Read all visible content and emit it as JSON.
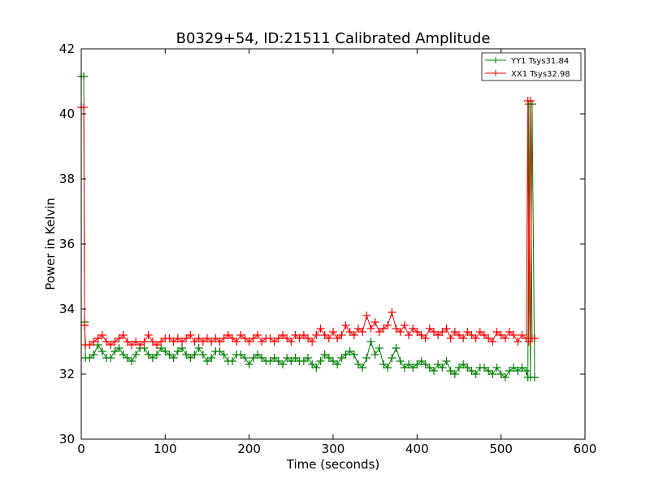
{
  "chart_data": {
    "type": "line",
    "title": "B0329+54, ID:21511 Calibrated Amplitude",
    "xlabel": "Time (seconds)",
    "ylabel": "Power in Kelvin",
    "xlim": [
      0,
      600
    ],
    "ylim": [
      30,
      42
    ],
    "xticks": [
      "0",
      "100",
      "200",
      "300",
      "400",
      "500",
      "600"
    ],
    "yticks": [
      "30",
      "32",
      "34",
      "36",
      "38",
      "40",
      "42"
    ],
    "grid": false,
    "legend_position": "top-right",
    "marker": "+",
    "series": [
      {
        "name": "YY1 Tsys31.84",
        "color": "#008000",
        "x": [
          0,
          3,
          4,
          5,
          10,
          15,
          20,
          25,
          30,
          35,
          40,
          45,
          50,
          55,
          60,
          65,
          70,
          75,
          80,
          85,
          90,
          95,
          100,
          105,
          110,
          115,
          120,
          125,
          130,
          135,
          140,
          145,
          150,
          155,
          160,
          165,
          170,
          175,
          180,
          185,
          190,
          195,
          200,
          205,
          210,
          215,
          220,
          225,
          230,
          235,
          240,
          245,
          250,
          255,
          260,
          265,
          270,
          275,
          280,
          285,
          290,
          295,
          300,
          305,
          310,
          315,
          320,
          325,
          330,
          335,
          340,
          345,
          350,
          355,
          360,
          365,
          370,
          375,
          380,
          385,
          390,
          395,
          400,
          405,
          410,
          415,
          420,
          425,
          430,
          435,
          440,
          445,
          450,
          455,
          460,
          465,
          470,
          475,
          480,
          485,
          490,
          495,
          500,
          505,
          510,
          515,
          520,
          525,
          530,
          532,
          533,
          535,
          537,
          540
        ],
        "y": [
          41.15,
          41.15,
          33.6,
          32.5,
          32.5,
          32.6,
          32.9,
          32.7,
          32.5,
          32.5,
          32.7,
          32.8,
          32.6,
          32.5,
          32.4,
          32.6,
          32.8,
          32.8,
          32.6,
          32.5,
          32.6,
          32.8,
          32.7,
          32.6,
          32.5,
          32.7,
          32.8,
          32.6,
          32.5,
          32.6,
          32.8,
          32.6,
          32.4,
          32.5,
          32.7,
          32.7,
          32.6,
          32.4,
          32.4,
          32.6,
          32.6,
          32.5,
          32.3,
          32.5,
          32.6,
          32.5,
          32.4,
          32.4,
          32.5,
          32.4,
          32.3,
          32.5,
          32.4,
          32.5,
          32.4,
          32.4,
          32.5,
          32.3,
          32.2,
          32.4,
          32.6,
          32.5,
          32.4,
          32.3,
          32.5,
          32.6,
          32.7,
          32.6,
          32.3,
          32.2,
          32.5,
          33.0,
          32.6,
          32.8,
          32.3,
          32.2,
          32.5,
          32.8,
          32.4,
          32.2,
          32.3,
          32.2,
          32.3,
          32.4,
          32.3,
          32.2,
          32.1,
          32.3,
          32.2,
          32.4,
          32.1,
          32.0,
          32.2,
          32.3,
          32.2,
          32.1,
          32.0,
          32.2,
          32.2,
          32.1,
          32.0,
          32.2,
          32.0,
          31.9,
          32.1,
          32.2,
          32.1,
          32.2,
          32.1,
          31.9,
          40.3,
          31.9,
          40.3,
          31.9
        ]
      },
      {
        "name": "XX1 Tsys32.98",
        "color": "#ff0000",
        "x": [
          0,
          3,
          4,
          5,
          10,
          15,
          20,
          25,
          30,
          35,
          40,
          45,
          50,
          55,
          60,
          65,
          70,
          75,
          80,
          85,
          90,
          95,
          100,
          105,
          110,
          115,
          120,
          125,
          130,
          135,
          140,
          145,
          150,
          155,
          160,
          165,
          170,
          175,
          180,
          185,
          190,
          195,
          200,
          205,
          210,
          215,
          220,
          225,
          230,
          235,
          240,
          245,
          250,
          255,
          260,
          265,
          270,
          275,
          280,
          285,
          290,
          295,
          300,
          305,
          310,
          315,
          320,
          325,
          330,
          335,
          340,
          345,
          350,
          355,
          360,
          365,
          370,
          375,
          380,
          385,
          390,
          395,
          400,
          405,
          410,
          415,
          420,
          425,
          430,
          435,
          440,
          445,
          450,
          455,
          460,
          465,
          470,
          475,
          480,
          485,
          490,
          495,
          500,
          505,
          510,
          515,
          520,
          525,
          530,
          532,
          533,
          535,
          537,
          540
        ],
        "y": [
          40.2,
          40.2,
          33.5,
          32.9,
          32.9,
          33.0,
          33.1,
          33.2,
          33.0,
          32.9,
          33.0,
          33.1,
          33.2,
          33.0,
          32.9,
          33.0,
          32.9,
          33.0,
          33.2,
          33.0,
          32.9,
          33.0,
          33.1,
          33.1,
          33.0,
          33.1,
          33.0,
          33.1,
          33.2,
          33.0,
          33.1,
          33.0,
          33.1,
          33.0,
          33.1,
          33.0,
          33.1,
          33.2,
          33.1,
          33.0,
          33.2,
          33.1,
          33.0,
          33.1,
          33.2,
          33.0,
          33.1,
          33.1,
          33.0,
          33.1,
          33.2,
          33.1,
          33.0,
          33.2,
          33.1,
          33.2,
          33.1,
          33.0,
          33.2,
          33.4,
          33.2,
          33.1,
          33.3,
          33.1,
          33.2,
          33.5,
          33.3,
          33.2,
          33.4,
          33.3,
          33.8,
          33.4,
          33.6,
          33.3,
          33.4,
          33.5,
          33.9,
          33.4,
          33.3,
          33.5,
          33.2,
          33.4,
          33.3,
          33.2,
          33.1,
          33.4,
          33.3,
          33.2,
          33.3,
          33.4,
          33.1,
          33.3,
          33.2,
          33.1,
          33.3,
          33.2,
          33.1,
          33.3,
          33.2,
          33.1,
          33.0,
          33.3,
          33.2,
          33.1,
          33.3,
          33.2,
          33.0,
          33.2,
          33.1,
          40.4,
          33.0,
          40.4,
          33.1,
          33.1
        ]
      }
    ]
  }
}
